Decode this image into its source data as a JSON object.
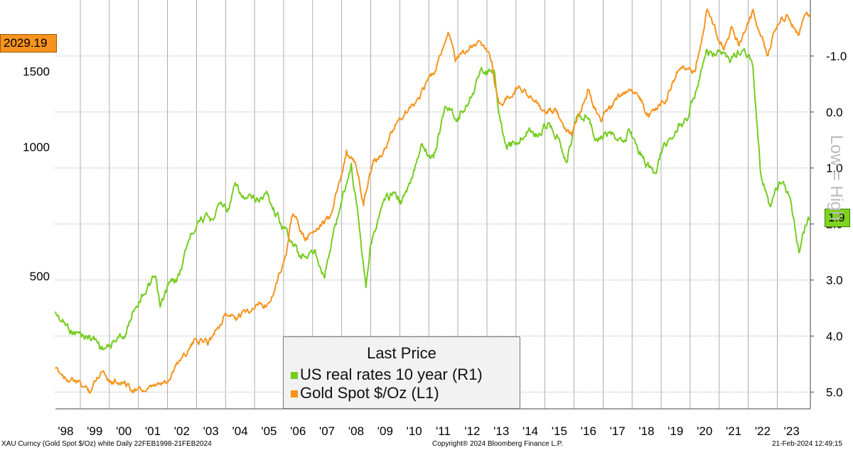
{
  "chart_data": {
    "type": "line",
    "title": "",
    "x_tick_labels": [
      "'98",
      "'99",
      "'00",
      "'01",
      "'02",
      "'03",
      "'04",
      "'05",
      "'06",
      "'07",
      "'08",
      "'09",
      "'10",
      "'11",
      "'12",
      "'13",
      "'14",
      "'15",
      "'16",
      "'17",
      "'18",
      "'19",
      "'20",
      "'21",
      "'22",
      "'23"
    ],
    "x_range": [
      "1998-02-22",
      "2024-02-21"
    ],
    "left_axis": {
      "ticks": [
        500,
        1000,
        1500
      ],
      "shown_tick_labels": [
        "500",
        "1000",
        "1500"
      ],
      "range": [
        245,
        2200
      ]
    },
    "right_axis": {
      "ticks": [
        "-1.0",
        "0.0",
        "1.0",
        "2.0",
        "3.0",
        "4.0",
        "5.0"
      ],
      "range": [
        -2.0,
        5.3
      ],
      "inverted": true,
      "title": "Low = High"
    },
    "grid": true,
    "series": [
      {
        "name": "US real rates 10 year  (R1)",
        "axis": "right",
        "color": "#77cc22",
        "last_value": "1.9",
        "points": [
          [
            "1998-02-22",
            3.6
          ],
          [
            "1998-06-01",
            3.75
          ],
          [
            "1998-10-01",
            3.9
          ],
          [
            "1999-02-01",
            4.0
          ],
          [
            "1999-06-01",
            4.0
          ],
          [
            "1999-10-01",
            4.2
          ],
          [
            "2000-01-01",
            4.2
          ],
          [
            "2000-04-01",
            4.05
          ],
          [
            "2000-08-01",
            3.95
          ],
          [
            "2000-11-01",
            3.5
          ],
          [
            "2001-03-01",
            3.2
          ],
          [
            "2001-08-01",
            3.0
          ],
          [
            "2001-10-01",
            3.55
          ],
          [
            "2002-01-01",
            3.15
          ],
          [
            "2002-06-01",
            2.9
          ],
          [
            "2002-10-01",
            2.25
          ],
          [
            "2003-02-01",
            1.85
          ],
          [
            "2003-07-01",
            1.95
          ],
          [
            "2003-10-01",
            1.6
          ],
          [
            "2004-02-01",
            1.7
          ],
          [
            "2004-05-01",
            1.35
          ],
          [
            "2004-08-01",
            1.55
          ],
          [
            "2005-01-01",
            1.6
          ],
          [
            "2005-06-01",
            1.45
          ],
          [
            "2005-10-01",
            1.8
          ],
          [
            "2006-03-01",
            2.2
          ],
          [
            "2006-08-01",
            2.6
          ],
          [
            "2007-02-01",
            2.5
          ],
          [
            "2007-06-01",
            2.85
          ],
          [
            "2007-09-01",
            2.3
          ],
          [
            "2008-01-01",
            1.55
          ],
          [
            "2008-05-01",
            0.95
          ],
          [
            "2008-08-01",
            1.9
          ],
          [
            "2008-11-01",
            3.05
          ],
          [
            "2009-01-01",
            2.3
          ],
          [
            "2009-06-01",
            1.7
          ],
          [
            "2009-10-01",
            1.45
          ],
          [
            "2010-02-01",
            1.6
          ],
          [
            "2010-06-01",
            1.25
          ],
          [
            "2010-10-01",
            0.5
          ],
          [
            "2011-03-01",
            0.85
          ],
          [
            "2011-08-01",
            -0.1
          ],
          [
            "2012-01-01",
            0.1
          ],
          [
            "2012-06-01",
            -0.25
          ],
          [
            "2012-09-01",
            -0.6
          ],
          [
            "2012-12-01",
            -0.75
          ],
          [
            "2013-04-01",
            -0.7
          ],
          [
            "2013-06-01",
            0.05
          ],
          [
            "2013-09-01",
            0.65
          ],
          [
            "2014-02-01",
            0.55
          ],
          [
            "2014-06-01",
            0.3
          ],
          [
            "2014-10-01",
            0.4
          ],
          [
            "2015-02-01",
            0.2
          ],
          [
            "2015-06-01",
            0.35
          ],
          [
            "2015-10-01",
            0.85
          ],
          [
            "2016-02-01",
            0.1
          ],
          [
            "2016-06-01",
            0.05
          ],
          [
            "2016-10-01",
            0.45
          ],
          [
            "2017-02-01",
            0.4
          ],
          [
            "2017-08-01",
            0.6
          ],
          [
            "2017-12-01",
            0.35
          ],
          [
            "2018-04-01",
            0.7
          ],
          [
            "2018-10-01",
            1.1
          ],
          [
            "2019-02-01",
            0.65
          ],
          [
            "2019-08-01",
            0.25
          ],
          [
            "2019-12-01",
            0.05
          ],
          [
            "2020-04-01",
            -0.45
          ],
          [
            "2020-08-01",
            -1.05
          ],
          [
            "2021-01-01",
            -1.0
          ],
          [
            "2021-06-01",
            -0.9
          ],
          [
            "2021-11-01",
            -1.15
          ],
          [
            "2022-03-01",
            -0.9
          ],
          [
            "2022-06-01",
            1.0
          ],
          [
            "2022-10-01",
            1.7
          ],
          [
            "2023-02-01",
            1.3
          ],
          [
            "2023-06-01",
            1.55
          ],
          [
            "2023-10-01",
            2.5
          ],
          [
            "2024-01-01",
            2.0
          ],
          [
            "2024-02-21",
            1.9
          ]
        ]
      },
      {
        "name": "Gold Spot $/Oz  (L1)",
        "axis": "left",
        "color": "#f7941d",
        "last_value": "2029.19",
        "points": [
          [
            "1998-02-22",
            300
          ],
          [
            "1998-08-01",
            290
          ],
          [
            "1999-05-01",
            270
          ],
          [
            "1999-10-01",
            305
          ],
          [
            "2000-02-01",
            285
          ],
          [
            "2000-06-01",
            285
          ],
          [
            "2001-01-01",
            270
          ],
          [
            "2001-06-01",
            270
          ],
          [
            "2002-01-01",
            285
          ],
          [
            "2002-06-01",
            320
          ],
          [
            "2003-01-01",
            355
          ],
          [
            "2003-06-01",
            350
          ],
          [
            "2004-01-01",
            410
          ],
          [
            "2004-06-01",
            395
          ],
          [
            "2005-01-01",
            430
          ],
          [
            "2005-06-01",
            430
          ],
          [
            "2005-09-01",
            470
          ],
          [
            "2006-02-01",
            560
          ],
          [
            "2006-05-01",
            700
          ],
          [
            "2006-10-01",
            600
          ],
          [
            "2007-03-01",
            660
          ],
          [
            "2007-08-01",
            670
          ],
          [
            "2008-01-01",
            850
          ],
          [
            "2008-03-01",
            980
          ],
          [
            "2008-07-01",
            900
          ],
          [
            "2008-10-01",
            730
          ],
          [
            "2009-02-01",
            930
          ],
          [
            "2009-06-01",
            950
          ],
          [
            "2009-12-01",
            1150
          ],
          [
            "2010-06-01",
            1240
          ],
          [
            "2010-12-01",
            1400
          ],
          [
            "2011-04-01",
            1500
          ],
          [
            "2011-09-01",
            1850
          ],
          [
            "2011-12-01",
            1600
          ],
          [
            "2012-04-01",
            1650
          ],
          [
            "2012-10-01",
            1780
          ],
          [
            "2013-03-01",
            1590
          ],
          [
            "2013-06-01",
            1250
          ],
          [
            "2013-10-01",
            1320
          ],
          [
            "2014-03-01",
            1380
          ],
          [
            "2014-07-01",
            1320
          ],
          [
            "2014-12-01",
            1200
          ],
          [
            "2015-05-01",
            1200
          ],
          [
            "2015-12-01",
            1060
          ],
          [
            "2016-07-01",
            1360
          ],
          [
            "2016-12-01",
            1150
          ],
          [
            "2017-05-01",
            1250
          ],
          [
            "2017-09-01",
            1340
          ],
          [
            "2018-02-01",
            1350
          ],
          [
            "2018-08-01",
            1180
          ],
          [
            "2019-03-01",
            1300
          ],
          [
            "2019-09-01",
            1530
          ],
          [
            "2020-03-01",
            1500
          ],
          [
            "2020-08-01",
            2060
          ],
          [
            "2020-12-01",
            1840
          ],
          [
            "2021-03-01",
            1700
          ],
          [
            "2021-06-01",
            1900
          ],
          [
            "2021-09-01",
            1760
          ],
          [
            "2022-03-01",
            2040
          ],
          [
            "2022-09-01",
            1640
          ],
          [
            "2023-01-01",
            1920
          ],
          [
            "2023-05-01",
            2040
          ],
          [
            "2023-10-01",
            1830
          ],
          [
            "2023-12-01",
            2060
          ],
          [
            "2024-02-21",
            2029
          ]
        ]
      }
    ],
    "legend": {
      "title": "Last Price",
      "placement": "bottom-center"
    }
  },
  "tags": {
    "left_value": "2029.19",
    "right_value": "1.9"
  },
  "footer": {
    "left": "XAU Curncy (Gold Spot  $/Oz) white  Daily 22FEB1998-21FEB2024",
    "center": "Copyright® 2024 Bloomberg Finance L.P.",
    "right": "21-Feb-2024 12:49:15"
  },
  "colors": {
    "green": "#77cc22",
    "orange": "#f7941d",
    "grid": "#9a9a9a"
  }
}
